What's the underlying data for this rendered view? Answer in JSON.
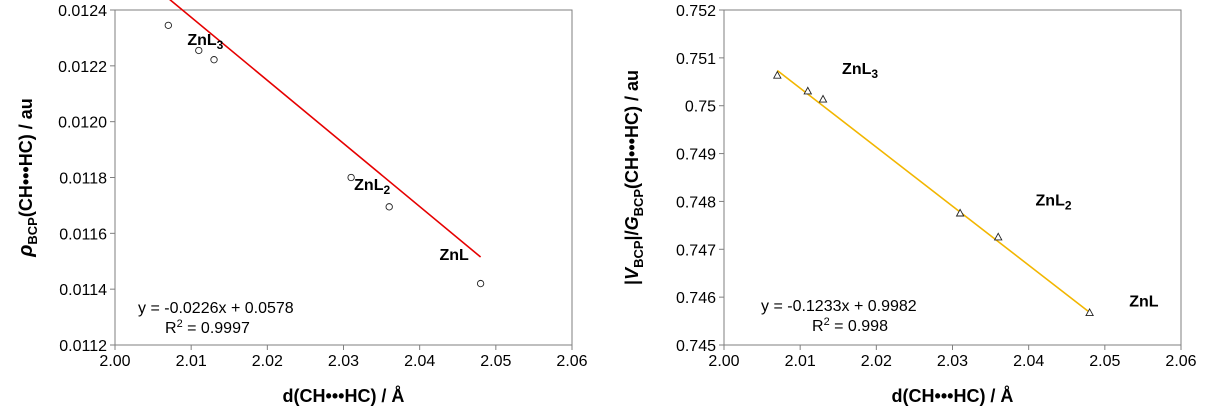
{
  "chart_data": [
    {
      "type": "scatter",
      "marker": "circle",
      "fit_line_color": "#e60000",
      "marker_color": "#222222",
      "title": "",
      "xlabel": "d(CH•••HC) / Å",
      "ylabel": {
        "main": "ρ",
        "sub": "BCP",
        "rest": "(CH•••HC) / au"
      },
      "xlim": [
        2.0,
        2.06
      ],
      "ylim": [
        0.0112,
        0.0124
      ],
      "x_ticks": [
        "2.00",
        "2.01",
        "2.02",
        "2.03",
        "2.04",
        "2.05",
        "2.06"
      ],
      "y_ticks": [
        "0.0112",
        "0.0114",
        "0.0116",
        "0.0118",
        "0.0120",
        "0.0122",
        "0.0124"
      ],
      "grid": false,
      "points": [
        {
          "x": 2.007,
          "y": 0.012345
        },
        {
          "x": 2.011,
          "y": 0.012255
        },
        {
          "x": 2.013,
          "y": 0.012222
        },
        {
          "x": 2.031,
          "y": 0.0118
        },
        {
          "x": 2.036,
          "y": 0.011695
        },
        {
          "x": 2.048,
          "y": 0.01142
        }
      ],
      "fit": {
        "slope": -0.0226,
        "intercept": 0.0578,
        "x_range": [
          2.007,
          2.048
        ]
      },
      "equation": "y = -0.0226x + 0.0578",
      "r2": {
        "main": "R",
        "sup": "2",
        "rest": " = 0.9997"
      },
      "annotations": [
        {
          "base": "ZnL",
          "sub": "3",
          "x": 2.0095,
          "y": 0.012275
        },
        {
          "base": "ZnL",
          "sub": "2",
          "x": 2.0314,
          "y": 0.011755
        },
        {
          "base": "ZnL",
          "sub": "",
          "x": 2.0426,
          "y": 0.011505
        }
      ]
    },
    {
      "type": "scatter",
      "marker": "triangle",
      "fit_line_color": "#f2b600",
      "marker_color": "#222222",
      "title": "",
      "xlabel": "d(CH•••HC) / Å",
      "ylabel": {
        "bar1": "|",
        "v": "V",
        "vsub": "BCP",
        "mid": "|/",
        "g": "G",
        "gsub": "BCP",
        "rest": "(CH•••HC) / au"
      },
      "xlim": [
        2.0,
        2.06
      ],
      "ylim": [
        0.745,
        0.752
      ],
      "x_ticks": [
        "2.00",
        "2.01",
        "2.02",
        "2.03",
        "2.04",
        "2.05",
        "2.06"
      ],
      "y_ticks": [
        "0.745",
        "0.746",
        "0.747",
        "0.748",
        "0.749",
        "0.75",
        "0.751",
        "0.752"
      ],
      "grid": false,
      "points": [
        {
          "x": 2.007,
          "y": 0.75063
        },
        {
          "x": 2.011,
          "y": 0.7503
        },
        {
          "x": 2.013,
          "y": 0.75013
        },
        {
          "x": 2.031,
          "y": 0.74775
        },
        {
          "x": 2.036,
          "y": 0.74725
        },
        {
          "x": 2.048,
          "y": 0.74567
        }
      ],
      "fit": {
        "slope": -0.1233,
        "intercept": 0.9982,
        "x_range": [
          2.007,
          2.048
        ]
      },
      "equation": "y = -0.1233x + 0.9982",
      "r2": {
        "main": "R",
        "sup": "2",
        "rest": " = 0.998"
      },
      "annotations": [
        {
          "base": "ZnL",
          "sub": "3",
          "x": 2.0155,
          "y": 0.75066
        },
        {
          "base": "ZnL",
          "sub": "2",
          "x": 2.0409,
          "y": 0.74791
        },
        {
          "base": "ZnL",
          "sub": "",
          "x": 2.0532,
          "y": 0.7458
        }
      ]
    }
  ]
}
